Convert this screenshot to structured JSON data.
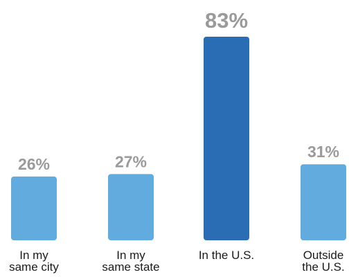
{
  "chart_data": {
    "type": "bar",
    "categories": [
      [
        "In my",
        "same city"
      ],
      [
        "In my",
        "same state"
      ],
      [
        "In the U.S."
      ],
      [
        "Outside",
        "the U.S."
      ]
    ],
    "values": [
      26,
      27,
      83,
      31
    ],
    "value_labels": [
      "26%",
      "27%",
      "83%",
      "31%"
    ],
    "highlight_index": 2,
    "ylim": [
      0,
      83
    ],
    "grid": false,
    "title": "",
    "xlabel": "",
    "ylabel": ""
  },
  "colors": {
    "bar_default": "#62abdf",
    "bar_highlight": "#2a6db5",
    "value_label": "#9a9a9a",
    "category_label": "#1a1a1a"
  }
}
